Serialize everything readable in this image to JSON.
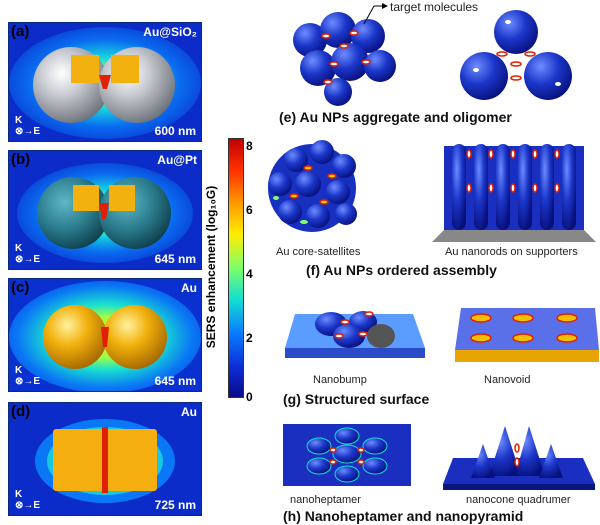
{
  "panels": [
    {
      "label": "(a)",
      "material": "Au@SiO₂",
      "wavelength": "600 nm"
    },
    {
      "label": "(b)",
      "material": "Au@Pt",
      "wavelength": "645 nm"
    },
    {
      "label": "(c)",
      "material": "Au",
      "wavelength": "645 nm"
    },
    {
      "label": "(d)",
      "material": "Au",
      "wavelength": "725 nm"
    }
  ],
  "axes_marker": {
    "k": "K",
    "e": "E"
  },
  "colorbar": {
    "title": "SERS enhancement (log₁₀G)",
    "ticks": [
      "8",
      "6",
      "4",
      "2",
      "0"
    ],
    "colors": [
      "#c00000",
      "#ff3000",
      "#ff9a00",
      "#ffee00",
      "#7cff6a",
      "#14e0d0",
      "#0a7dff",
      "#0c2fd8",
      "#0a0a8a"
    ]
  },
  "right": {
    "target_label": "target molecules",
    "e_caption": "(e) Au NPs aggregate and oligomer",
    "f_sub_left": "Au core-satellites",
    "f_sub_right": "Au nanorods on supporters",
    "f_caption": "(f) Au NPs ordered assembly",
    "g_sub_left": "Nanobump",
    "g_sub_right": "Nanovoid",
    "g_caption": "(g) Structured surface",
    "h_sub_left": "nanoheptamer",
    "h_sub_right": "nanocone quadrumer",
    "h_caption": "(h) Nanoheptamer and nanopyramid"
  }
}
